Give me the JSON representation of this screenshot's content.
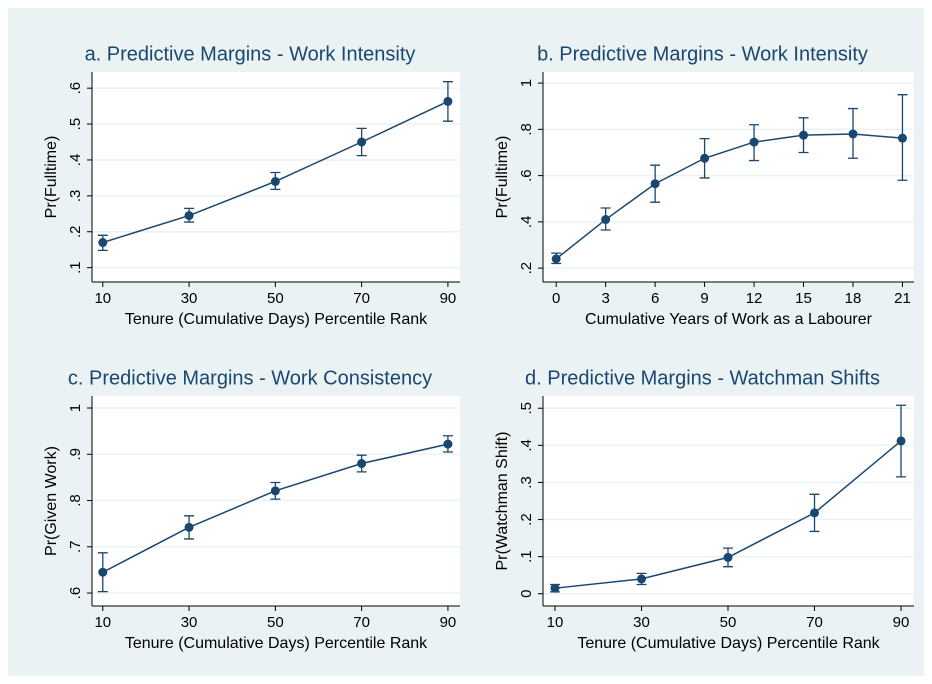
{
  "chart_data": [
    {
      "type": "line",
      "title": "a. Predictive Margins - Work Intensity",
      "xlabel": "Tenure (Cumulative Days) Percentile Rank",
      "ylabel": "Pr(Fulltime)",
      "color": "#1a476f",
      "grid": true,
      "x": [
        10,
        30,
        50,
        70,
        90
      ],
      "values": [
        0.17,
        0.245,
        0.34,
        0.45,
        0.563
      ],
      "ci_lower": [
        0.148,
        0.227,
        0.318,
        0.412,
        0.508
      ],
      "ci_upper": [
        0.19,
        0.265,
        0.365,
        0.488,
        0.618
      ],
      "xlim": [
        7.5,
        92.8
      ],
      "xticks": [
        10,
        30,
        50,
        70,
        90
      ],
      "ylim": [
        0.06,
        0.645
      ],
      "yticks": [
        {
          "value": 0.1,
          "label": ".1"
        },
        {
          "value": 0.2,
          "label": ".2"
        },
        {
          "value": 0.3,
          "label": ".3"
        },
        {
          "value": 0.4,
          "label": ".4"
        },
        {
          "value": 0.5,
          "label": ".5"
        },
        {
          "value": 0.6,
          "label": ".6"
        }
      ]
    },
    {
      "type": "line",
      "title": "b. Predictive Margins - Work Intensity",
      "xlabel": "Cumulative Years of Work as a Labourer",
      "ylabel": "Pr(Fulltime)",
      "color": "#1a476f",
      "grid": true,
      "x": [
        0,
        3,
        6,
        9,
        12,
        15,
        18,
        21
      ],
      "values": [
        0.24,
        0.41,
        0.565,
        0.675,
        0.745,
        0.775,
        0.78,
        0.762
      ],
      "ci_lower": [
        0.22,
        0.365,
        0.485,
        0.59,
        0.665,
        0.7,
        0.675,
        0.58
      ],
      "ci_upper": [
        0.265,
        0.46,
        0.645,
        0.76,
        0.82,
        0.85,
        0.89,
        0.95
      ],
      "xlim": [
        -0.8,
        21.7
      ],
      "xticks": [
        0,
        3,
        6,
        9,
        12,
        15,
        18,
        21
      ],
      "ylim": [
        0.14,
        1.048
      ],
      "yticks": [
        {
          "value": 0.2,
          "label": ".2"
        },
        {
          "value": 0.4,
          "label": ".4"
        },
        {
          "value": 0.6,
          "label": ".6"
        },
        {
          "value": 0.8,
          "label": ".8"
        },
        1
      ]
    },
    {
      "type": "line",
      "title": "c. Predictive Margins - Work Consistency",
      "xlabel": "Tenure (Cumulative Days) Percentile Rank",
      "ylabel": "Pr(Given Work)",
      "color": "#1a476f",
      "grid": true,
      "x": [
        10,
        30,
        50,
        70,
        90
      ],
      "values": [
        0.645,
        0.742,
        0.821,
        0.88,
        0.922
      ],
      "ci_lower": [
        0.603,
        0.717,
        0.803,
        0.862,
        0.905
      ],
      "ci_upper": [
        0.687,
        0.767,
        0.839,
        0.898,
        0.94
      ],
      "xlim": [
        7.5,
        92.8
      ],
      "xticks": [
        10,
        30,
        50,
        70,
        90
      ],
      "ylim": [
        0.572,
        1.026
      ],
      "yticks": [
        {
          "value": 0.6,
          "label": ".6"
        },
        {
          "value": 0.7,
          "label": ".7"
        },
        {
          "value": 0.8,
          "label": ".8"
        },
        {
          "value": 0.9,
          "label": ".9"
        },
        1
      ]
    },
    {
      "type": "line",
      "title": "d. Predictive Margins - Watchman Shifts",
      "xlabel": "Tenure (Cumulative Days) Percentile Rank",
      "ylabel": "Pr(Watchman Shift)",
      "color": "#1a476f",
      "grid": true,
      "x": [
        10,
        30,
        50,
        70,
        90
      ],
      "values": [
        0.015,
        0.04,
        0.098,
        0.218,
        0.412
      ],
      "ci_lower": [
        0.005,
        0.025,
        0.073,
        0.168,
        0.315
      ],
      "ci_upper": [
        0.025,
        0.055,
        0.123,
        0.268,
        0.508
      ],
      "xlim": [
        7.23,
        93
      ],
      "xticks": [
        10,
        30,
        50,
        70,
        90
      ],
      "ylim": [
        -0.033,
        0.533
      ],
      "yticks": [
        0,
        {
          "value": 0.1,
          "label": ".1"
        },
        {
          "value": 0.2,
          "label": ".2"
        },
        {
          "value": 0.3,
          "label": ".3"
        },
        {
          "value": 0.4,
          "label": ".4"
        },
        {
          "value": 0.5,
          "label": ".5"
        }
      ]
    }
  ]
}
